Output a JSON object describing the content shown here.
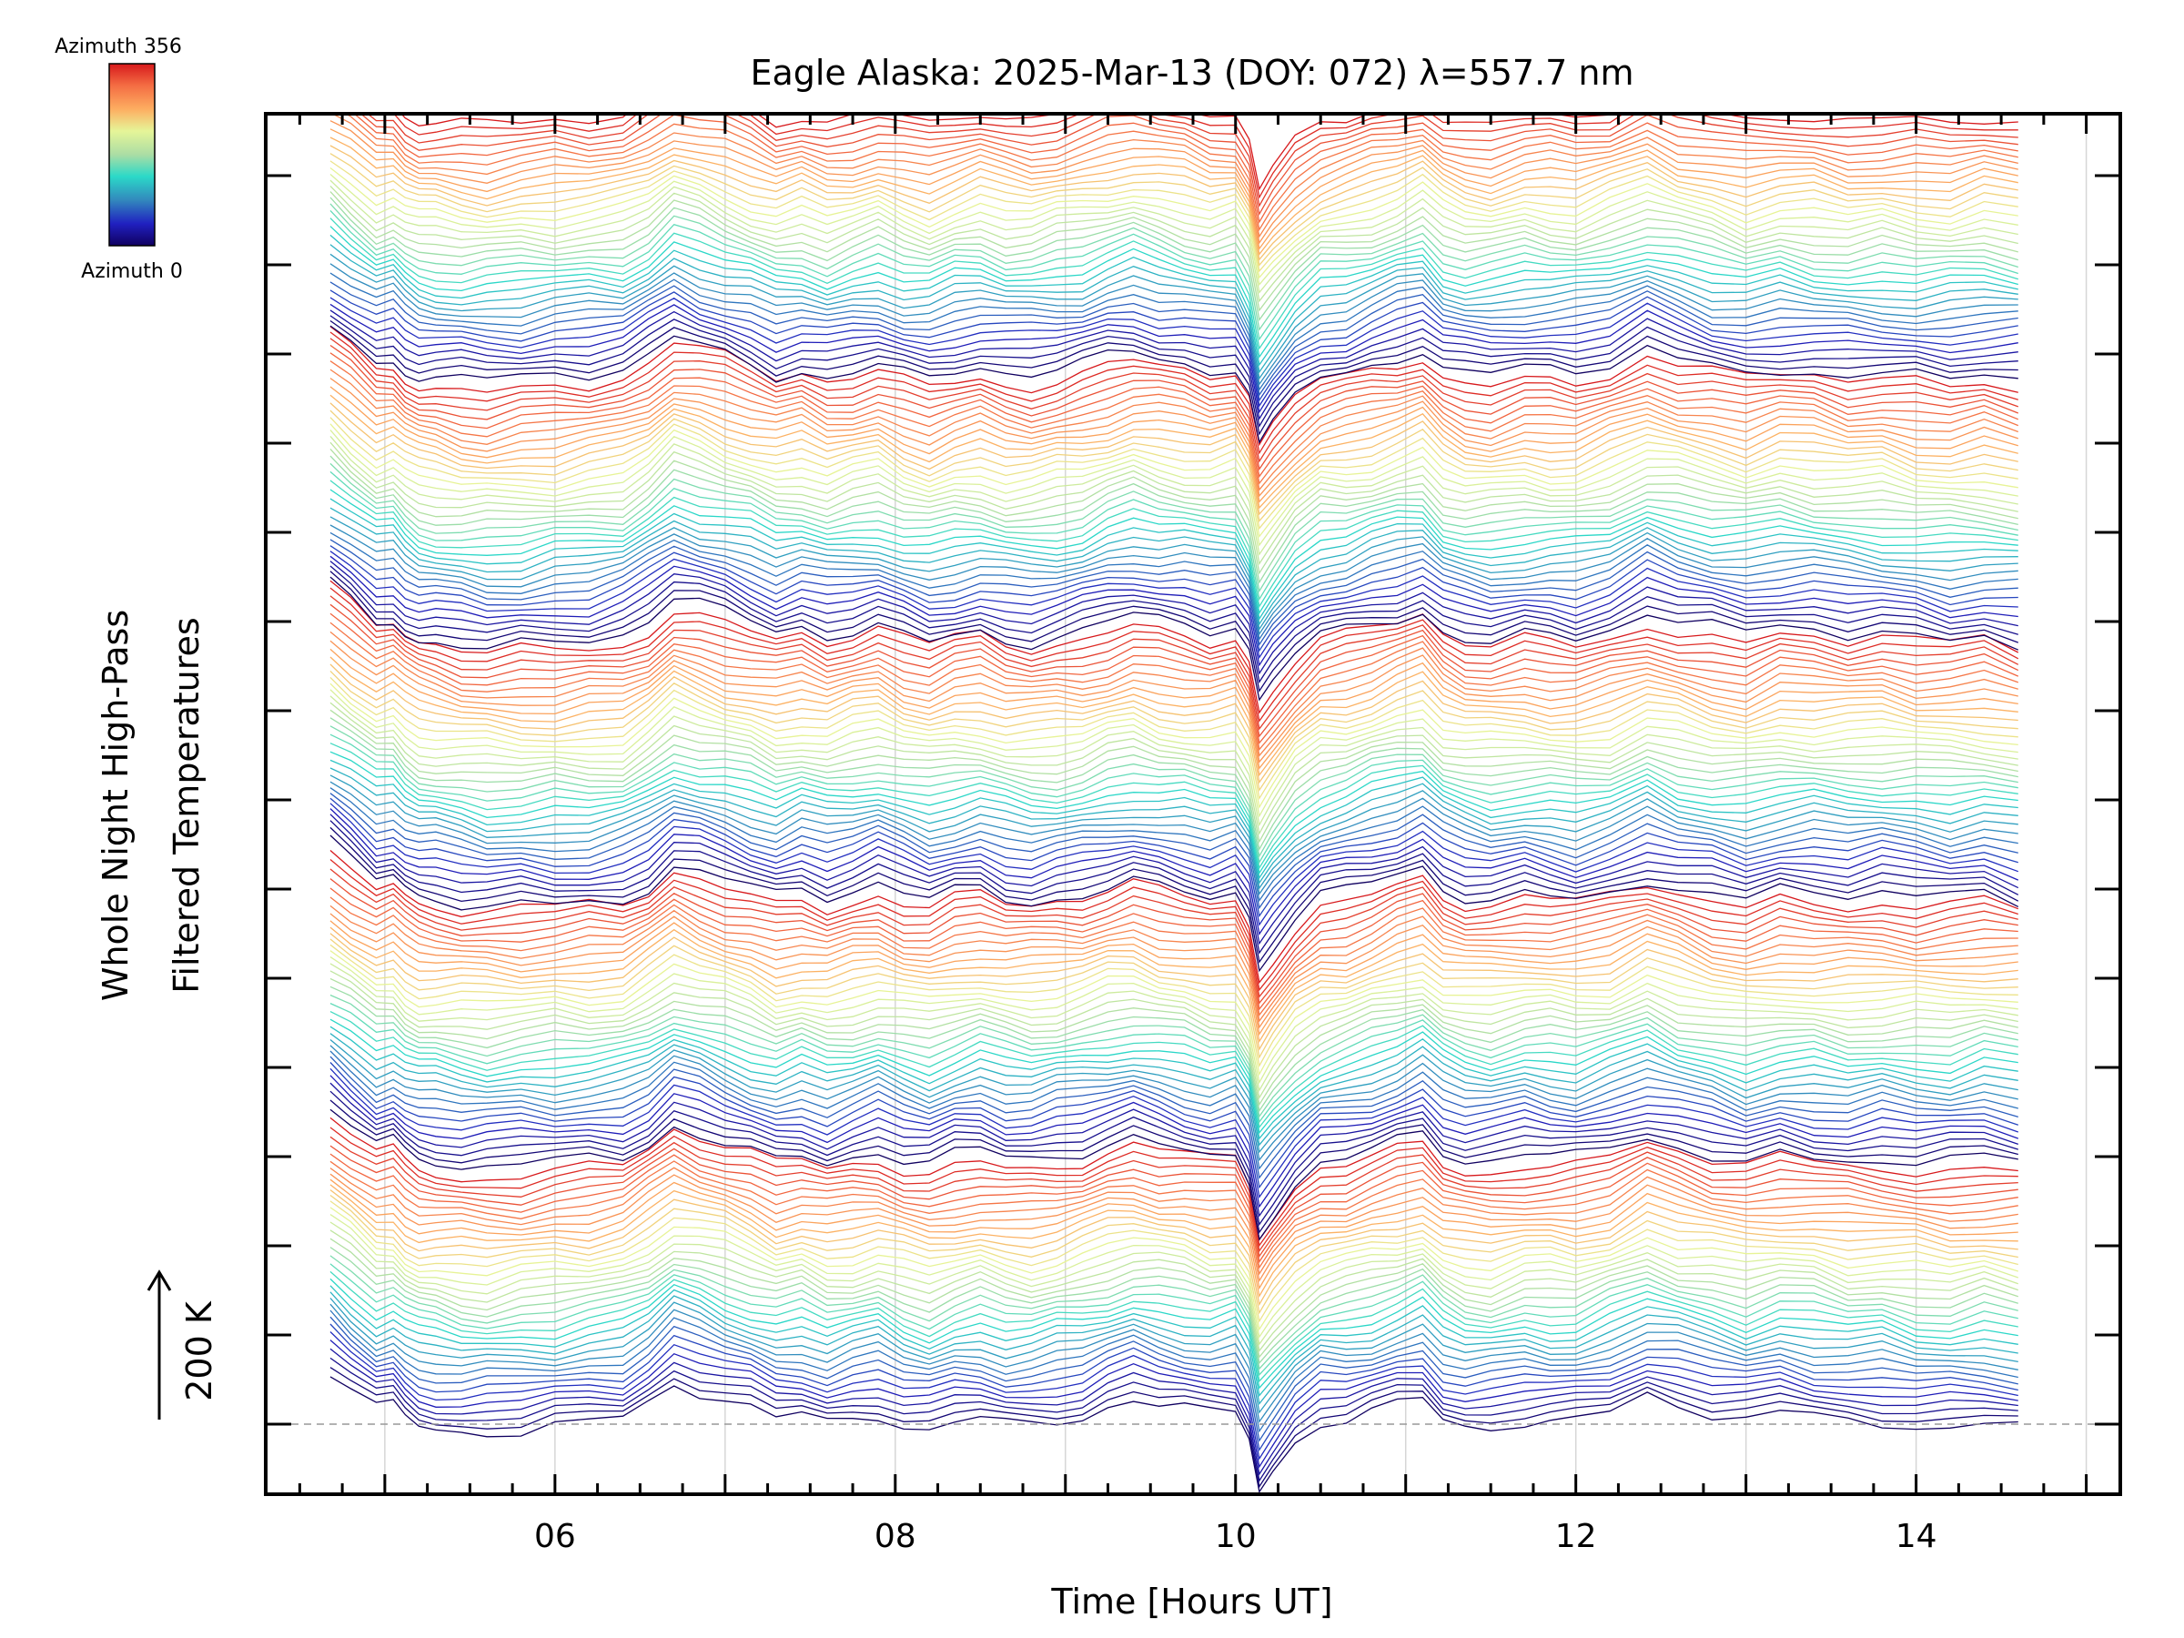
{
  "chart_data": {
    "type": "line",
    "title": "Eagle Alaska: 2025-Mar-13 (DOY: 072) λ=557.7 nm",
    "xlabel": "Time [Hours UT]",
    "ylabel_line1": "Whole Night High-Pass",
    "ylabel_line2": "Filtered Temperatures",
    "scale_label": "200 K",
    "xlim": [
      4.3,
      15.2
    ],
    "x_ticks": [
      6,
      8,
      10,
      12,
      14
    ],
    "x_tick_labels": [
      "06",
      "08",
      "10",
      "12",
      "14"
    ],
    "grid": "vertical",
    "data_start": 4.68,
    "data_end": 14.6,
    "num_series": 180,
    "series_color_by": "azimuth",
    "colorbar": {
      "top_label": "Azimuth 356",
      "bottom_label": "Azimuth 0",
      "stops": [
        "#d7191c",
        "#f46d43",
        "#fdae61",
        "#e6f598",
        "#abdda4",
        "#2bd9c8",
        "#3288bd",
        "#2020c0",
        "#100060"
      ]
    },
    "profile": {
      "times": [
        4.68,
        4.8,
        4.95,
        5.05,
        5.12,
        5.2,
        5.3,
        5.45,
        5.6,
        5.8,
        6.0,
        6.2,
        6.4,
        6.55,
        6.7,
        6.85,
        7.0,
        7.15,
        7.3,
        7.45,
        7.6,
        7.75,
        7.9,
        8.05,
        8.2,
        8.35,
        8.5,
        8.65,
        8.8,
        8.95,
        9.1,
        9.25,
        9.4,
        9.55,
        9.7,
        9.85,
        10.0,
        10.08,
        10.14,
        10.22,
        10.35,
        10.5,
        10.65,
        10.8,
        10.95,
        11.1,
        11.22,
        11.35,
        11.5,
        11.7,
        11.85,
        12.0,
        12.2,
        12.42,
        12.6,
        12.8,
        13.0,
        13.2,
        13.4,
        13.6,
        13.8,
        14.0,
        14.2,
        14.4,
        14.6
      ],
      "values": [
        150,
        110,
        60,
        70,
        40,
        20,
        15,
        5,
        0,
        5,
        10,
        15,
        25,
        60,
        110,
        90,
        70,
        50,
        25,
        40,
        20,
        35,
        50,
        25,
        10,
        30,
        40,
        20,
        15,
        25,
        35,
        55,
        70,
        55,
        45,
        30,
        40,
        -20,
        -150,
        -100,
        -30,
        20,
        30,
        50,
        70,
        90,
        40,
        20,
        15,
        30,
        25,
        20,
        40,
        80,
        55,
        35,
        20,
        40,
        35,
        25,
        30,
        20,
        15,
        25,
        10
      ]
    },
    "scale_kelvin": 200
  }
}
